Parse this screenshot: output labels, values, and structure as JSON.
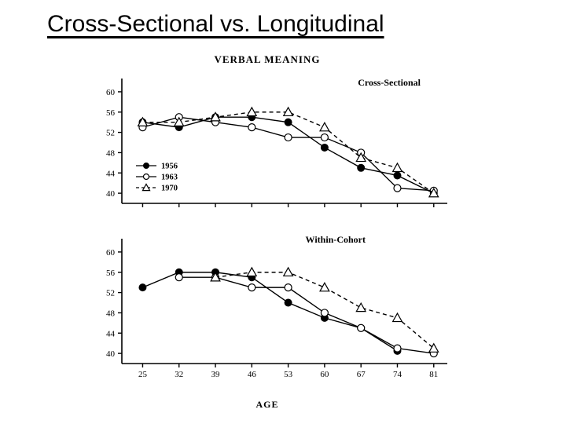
{
  "title": "Cross-Sectional vs. Longitudinal",
  "chart_title": "VERBAL  MEANING",
  "x_axis_label": "AGE",
  "x_ticks": [
    25,
    32,
    39,
    46,
    53,
    60,
    67,
    74,
    81
  ],
  "y_ticks": [
    40,
    44,
    48,
    52,
    56,
    60
  ],
  "ylim": [
    38,
    62
  ],
  "xlim": [
    21,
    83
  ],
  "colors": {
    "background": "#ffffff",
    "ink": "#000000",
    "axis": "#000000",
    "line": "#000000"
  },
  "line_width": 1.4,
  "marker_size": 4.5,
  "axis_fontsize": 11,
  "label_fontsize": 13,
  "title_fontsize": 13,
  "slide_title_fontsize": 30,
  "legend": {
    "items": [
      {
        "label": "1956",
        "marker": "filled-circle",
        "dash": "solid"
      },
      {
        "label": "1963",
        "marker": "open-circle",
        "dash": "solid"
      },
      {
        "label": "1970",
        "marker": "open-triangle",
        "dash": "dashed"
      }
    ]
  },
  "panels": [
    {
      "label": "Cross-Sectional",
      "series": [
        {
          "name": "1956",
          "marker": "filled-circle",
          "dash": "solid",
          "points": [
            [
              25,
              54
            ],
            [
              32,
              53
            ],
            [
              39,
              55
            ],
            [
              46,
              55
            ],
            [
              53,
              54
            ],
            [
              60,
              49
            ],
            [
              67,
              45
            ],
            [
              74,
              43.5
            ],
            [
              81,
              40
            ]
          ]
        },
        {
          "name": "1963",
          "marker": "open-circle",
          "dash": "solid",
          "points": [
            [
              25,
              53
            ],
            [
              32,
              55
            ],
            [
              39,
              54
            ],
            [
              46,
              53
            ],
            [
              53,
              51
            ],
            [
              60,
              51
            ],
            [
              67,
              48
            ],
            [
              74,
              41
            ],
            [
              81,
              40.5
            ]
          ]
        },
        {
          "name": "1970",
          "marker": "open-triangle",
          "dash": "dashed",
          "points": [
            [
              25,
              54
            ],
            [
              32,
              54
            ],
            [
              39,
              55
            ],
            [
              46,
              56
            ],
            [
              53,
              56
            ],
            [
              60,
              53
            ],
            [
              67,
              47
            ],
            [
              74,
              45
            ],
            [
              81,
              40
            ]
          ]
        }
      ]
    },
    {
      "label": "Within-Cohort",
      "series": [
        {
          "name": "1956",
          "marker": "filled-circle",
          "dash": "solid",
          "points": [
            [
              25,
              53
            ],
            [
              32,
              56
            ],
            [
              39,
              56
            ],
            [
              46,
              55
            ],
            [
              53,
              50
            ],
            [
              60,
              47
            ],
            [
              67,
              45
            ],
            [
              74,
              40.5
            ]
          ]
        },
        {
          "name": "1963",
          "marker": "open-circle",
          "dash": "solid",
          "points": [
            [
              32,
              55
            ],
            [
              39,
              55
            ],
            [
              46,
              53
            ],
            [
              53,
              53
            ],
            [
              60,
              48
            ],
            [
              67,
              45
            ],
            [
              74,
              41
            ],
            [
              81,
              40
            ]
          ]
        },
        {
          "name": "1970",
          "marker": "open-triangle",
          "dash": "dashed",
          "points": [
            [
              39,
              55
            ],
            [
              46,
              56
            ],
            [
              53,
              56
            ],
            [
              60,
              53
            ],
            [
              67,
              49
            ],
            [
              74,
              47
            ],
            [
              81,
              41
            ]
          ]
        }
      ]
    }
  ]
}
